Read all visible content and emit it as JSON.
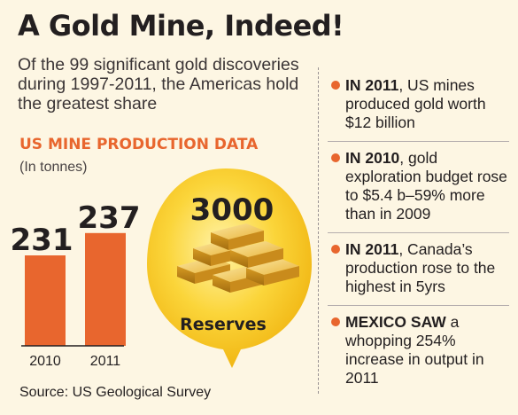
{
  "title": "A Gold Mine, Indeed!",
  "subtitle": "Of the 99 significant gold discoveries during 1997-2011, the Americas hold the greatest share",
  "section_heading": "US MINE PRODUCTION DATA",
  "unit": "(In tonnes)",
  "source": "Source: US Geological Survey",
  "reserves": {
    "value": "3000",
    "label": "Reserves"
  },
  "facts": [
    {
      "lead": "IN 2011",
      "text": ", US mines produced gold worth $12 billion"
    },
    {
      "lead": "IN 2010",
      "text": ", gold exploration budget rose to $5.4 b–59% more than in 2009"
    },
    {
      "lead": "IN 2011",
      "text": ", Canada’s production rose to the highest in 5yrs"
    },
    {
      "lead": "MEXICO SAW",
      "text": " a whopping 254% increase in output in 2011"
    }
  ],
  "chart_data": {
    "type": "bar",
    "categories": [
      "2010",
      "2011"
    ],
    "values": [
      231,
      237
    ],
    "title": "US MINE PRODUCTION DATA",
    "ylabel": "(In tonnes)",
    "xlabel": "",
    "colors": {
      "bar": "#e8662e",
      "axis": "#231f20",
      "label": "#231f20"
    }
  },
  "colors": {
    "accent": "#e8662e",
    "background": "#fdf6e3",
    "bubble": "#f5c518",
    "bubble_light": "#fdeb8a",
    "gold": "#e9b43c"
  },
  "icons": {
    "gold_bars": "gold-bars-icon",
    "bullet": "bullet-dot-icon"
  }
}
